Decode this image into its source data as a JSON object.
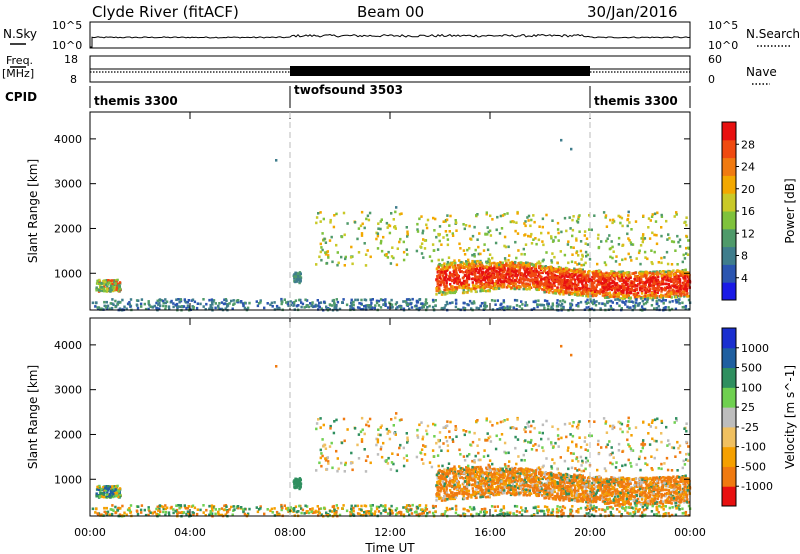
{
  "header": {
    "station": "Clyde River (fitACF)",
    "beam": "Beam 00",
    "date": "30/Jan/2016"
  },
  "top_panels": {
    "nsky": {
      "left_label": "N.Sky",
      "left_ticks": [
        "10^5",
        "10^0"
      ],
      "right_label": "N.Search",
      "right_ticks": [
        "10^5",
        "10^0"
      ],
      "right_legend_style": "dotted"
    },
    "freq": {
      "left_label_1": "Freq.",
      "left_label_2": "[MHz]",
      "left_ticks": [
        "18",
        "8"
      ],
      "right_label": "Nave",
      "right_ticks": [
        "60",
        "0"
      ],
      "right_legend_style": "dotted"
    },
    "cpid": {
      "label": "CPID",
      "segments": [
        {
          "name": "themis 3300",
          "start_hour": 0,
          "end_hour": 8
        },
        {
          "name": "twofsound 3503",
          "start_hour": 8,
          "end_hour": 20
        },
        {
          "name": "themis 3300",
          "start_hour": 20,
          "end_hour": 24
        }
      ]
    }
  },
  "chart_data": [
    {
      "type": "heatmap",
      "name": "power",
      "ylabel": "Slant Range [km]",
      "yticks": [
        "1000",
        "2000",
        "3000",
        "4000"
      ],
      "ylim": [
        180,
        4600
      ],
      "colorbar_label": "Power [dB]",
      "colorbar_ticks": [
        "4",
        "8",
        "12",
        "16",
        "20",
        "24",
        "28"
      ],
      "colorbar_range": [
        0,
        32
      ],
      "colors": [
        "#1a1ae6",
        "#2b55b0",
        "#3f7d8c",
        "#4f9a6a",
        "#7fc23c",
        "#c9c928",
        "#f2a800",
        "#f07a10",
        "#f04a10",
        "#e81010"
      ]
    },
    {
      "type": "heatmap",
      "name": "velocity",
      "ylabel": "Slant Range [km]",
      "yticks": [
        "1000",
        "2000",
        "3000",
        "4000"
      ],
      "ylim": [
        180,
        4600
      ],
      "xlabel": "Time UT",
      "xticks": [
        "00:00",
        "04:00",
        "08:00",
        "12:00",
        "16:00",
        "20:00",
        "00:00"
      ],
      "xlim": [
        0,
        24
      ],
      "colorbar_label": "Velocity [m s^-1]",
      "colorbar_ticks": [
        "-1000",
        "-500",
        "-100",
        "-25",
        "25",
        "100",
        "500",
        "1000"
      ],
      "colors": [
        "#e81010",
        "#f07a10",
        "#f5a000",
        "#f0c060",
        "#bdbdbd",
        "#6fd050",
        "#2f8f5f",
        "#1f5fa0",
        "#1a2fd0"
      ]
    }
  ]
}
